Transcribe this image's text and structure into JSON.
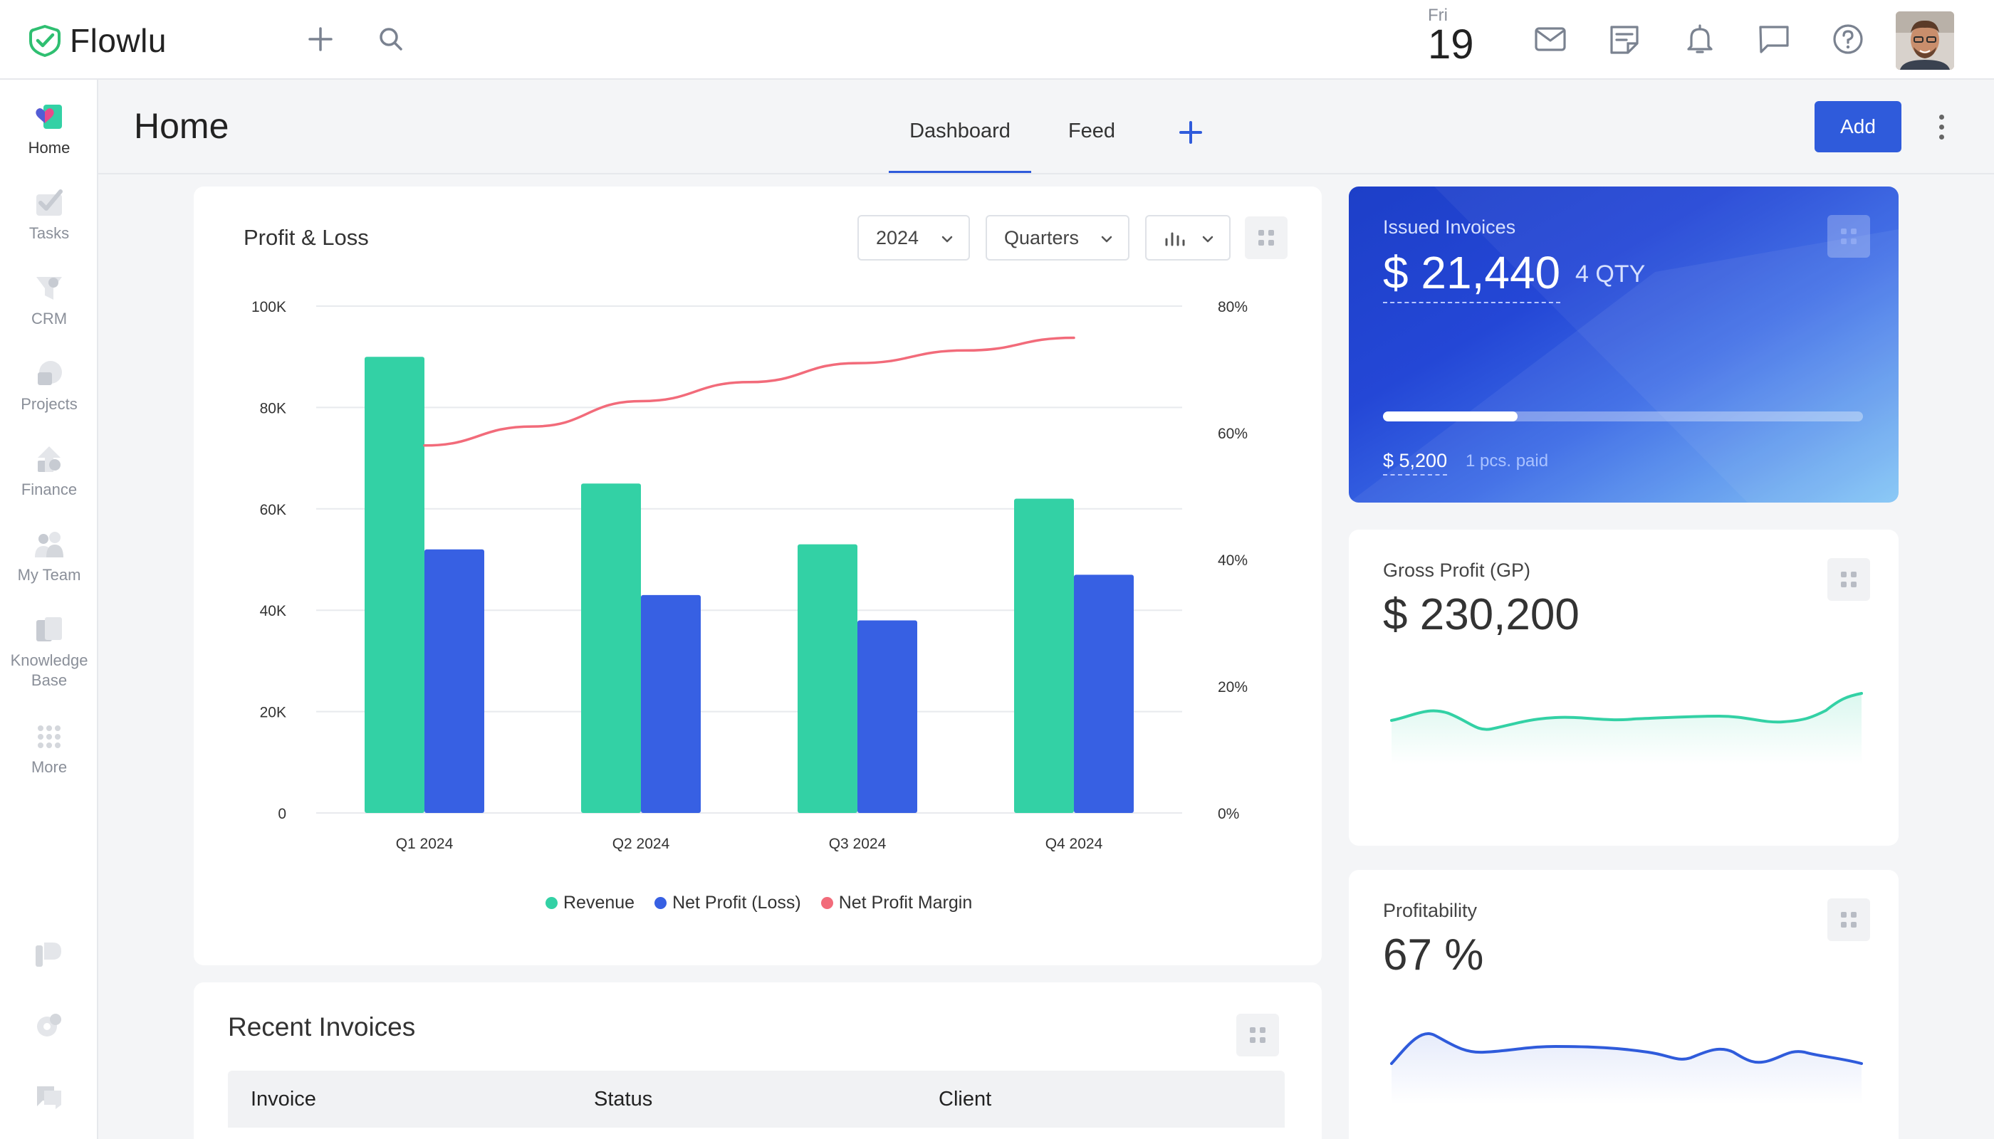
{
  "app": {
    "name": "Flowlu"
  },
  "topbar": {
    "date_day": "Fri",
    "date_num": "19",
    "icons": [
      "plus-icon",
      "search-icon",
      "mail-icon",
      "notes-icon",
      "bell-icon",
      "chat-icon",
      "help-icon"
    ]
  },
  "sidebar": {
    "items": [
      {
        "label": "Home",
        "icon": "home-icon"
      },
      {
        "label": "Tasks",
        "icon": "tasks-icon"
      },
      {
        "label": "CRM",
        "icon": "crm-icon"
      },
      {
        "label": "Projects",
        "icon": "projects-icon"
      },
      {
        "label": "Finance",
        "icon": "finance-icon"
      },
      {
        "label": "My Team",
        "icon": "team-icon"
      },
      {
        "label": "Knowledge Base",
        "icon": "knowledge-base-icon"
      },
      {
        "label": "More",
        "icon": "grid-icon"
      }
    ]
  },
  "header": {
    "title": "Home",
    "tabs": [
      {
        "label": "Dashboard"
      },
      {
        "label": "Feed"
      }
    ],
    "add_label": "Add"
  },
  "pl": {
    "title": "Profit & Loss",
    "year": "2024",
    "period": "Quarters"
  },
  "chart_data": {
    "type": "bar",
    "title": "Profit & Loss",
    "categories": [
      "Q1 2024",
      "Q2 2024",
      "Q3 2024",
      "Q4 2024"
    ],
    "series": [
      {
        "name": "Revenue",
        "type": "bar",
        "axis": "left",
        "color": "#33d1a5",
        "values": [
          90000,
          65000,
          53000,
          62000
        ]
      },
      {
        "name": "Net Profit (Loss)",
        "type": "bar",
        "axis": "left",
        "color": "#3760e3",
        "values": [
          52000,
          43000,
          38000,
          47000
        ]
      },
      {
        "name": "Net Profit Margin",
        "type": "line",
        "axis": "right",
        "color": "#f26b7a",
        "x": [
          0,
          0.5,
          1,
          1.5,
          2,
          2.5,
          3
        ],
        "values": [
          58,
          61,
          65,
          68,
          71,
          73,
          75
        ]
      }
    ],
    "ylim": [
      0,
      100000
    ],
    "y_ticks": [
      "0",
      "20K",
      "40K",
      "60K",
      "80K",
      "100K"
    ],
    "y2lim": [
      0,
      80
    ],
    "y2_ticks": [
      "0%",
      "20%",
      "40%",
      "60%",
      "80%"
    ],
    "grid": true,
    "legend": "bottom"
  },
  "invoices": {
    "label": "Issued Invoices",
    "amount": "$ 21,440",
    "qty": "4 QTY",
    "paid_amount": "$ 5,200",
    "paid_note": "1 pcs. paid",
    "paid_fraction": 0.28
  },
  "gross_profit": {
    "label": "Gross Profit (GP)",
    "value": "$ 230,200",
    "color": "#33d1a5"
  },
  "profitability": {
    "label": "Profitability",
    "value": "67 %",
    "color": "#2f5bdb"
  },
  "recent_invoices": {
    "title": "Recent Invoices",
    "columns": [
      "Invoice",
      "Status",
      "Client"
    ]
  }
}
